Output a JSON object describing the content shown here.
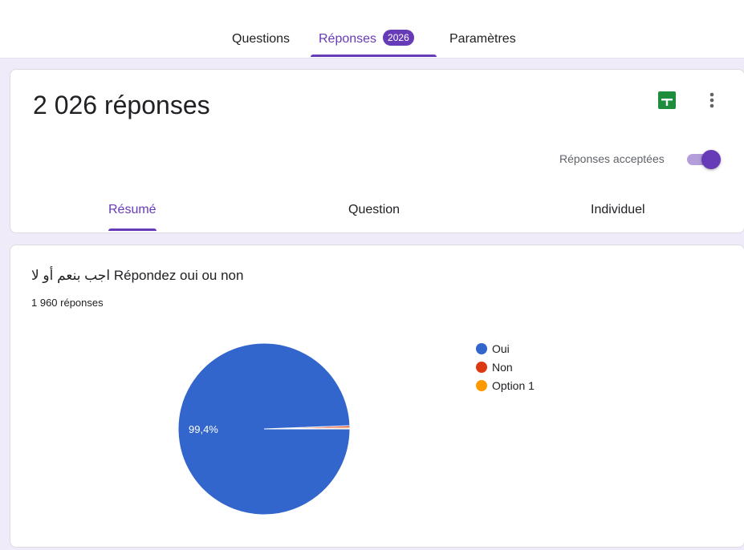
{
  "tabs": {
    "questions": "Questions",
    "reponses": "Réponses",
    "reponses_badge": "2026",
    "parametres": "Paramètres",
    "active": "Réponses"
  },
  "summary": {
    "title": "2 026 réponses",
    "sheets_icon": "sheets-icon",
    "more_icon": "more-vert-icon",
    "accepting_label": "Réponses acceptées",
    "accepting": true,
    "subtabs": [
      "Résumé",
      "Question",
      "Individuel"
    ],
    "active_subtab": "Résumé"
  },
  "question": {
    "title": "اجب بنعم أو لا Répondez oui ou non",
    "count": "1 960 réponses"
  },
  "colors": {
    "accent": "#673ab7",
    "oui": "#3366cc",
    "non": "#dc3912",
    "option1": "#ff9900"
  },
  "chart_data": {
    "type": "pie",
    "categories": [
      "Oui",
      "Non",
      "Option 1"
    ],
    "values": [
      99.4,
      0.4,
      0.2
    ],
    "data_labels": [
      "99,4%",
      "",
      ""
    ],
    "legend_position": "right"
  }
}
